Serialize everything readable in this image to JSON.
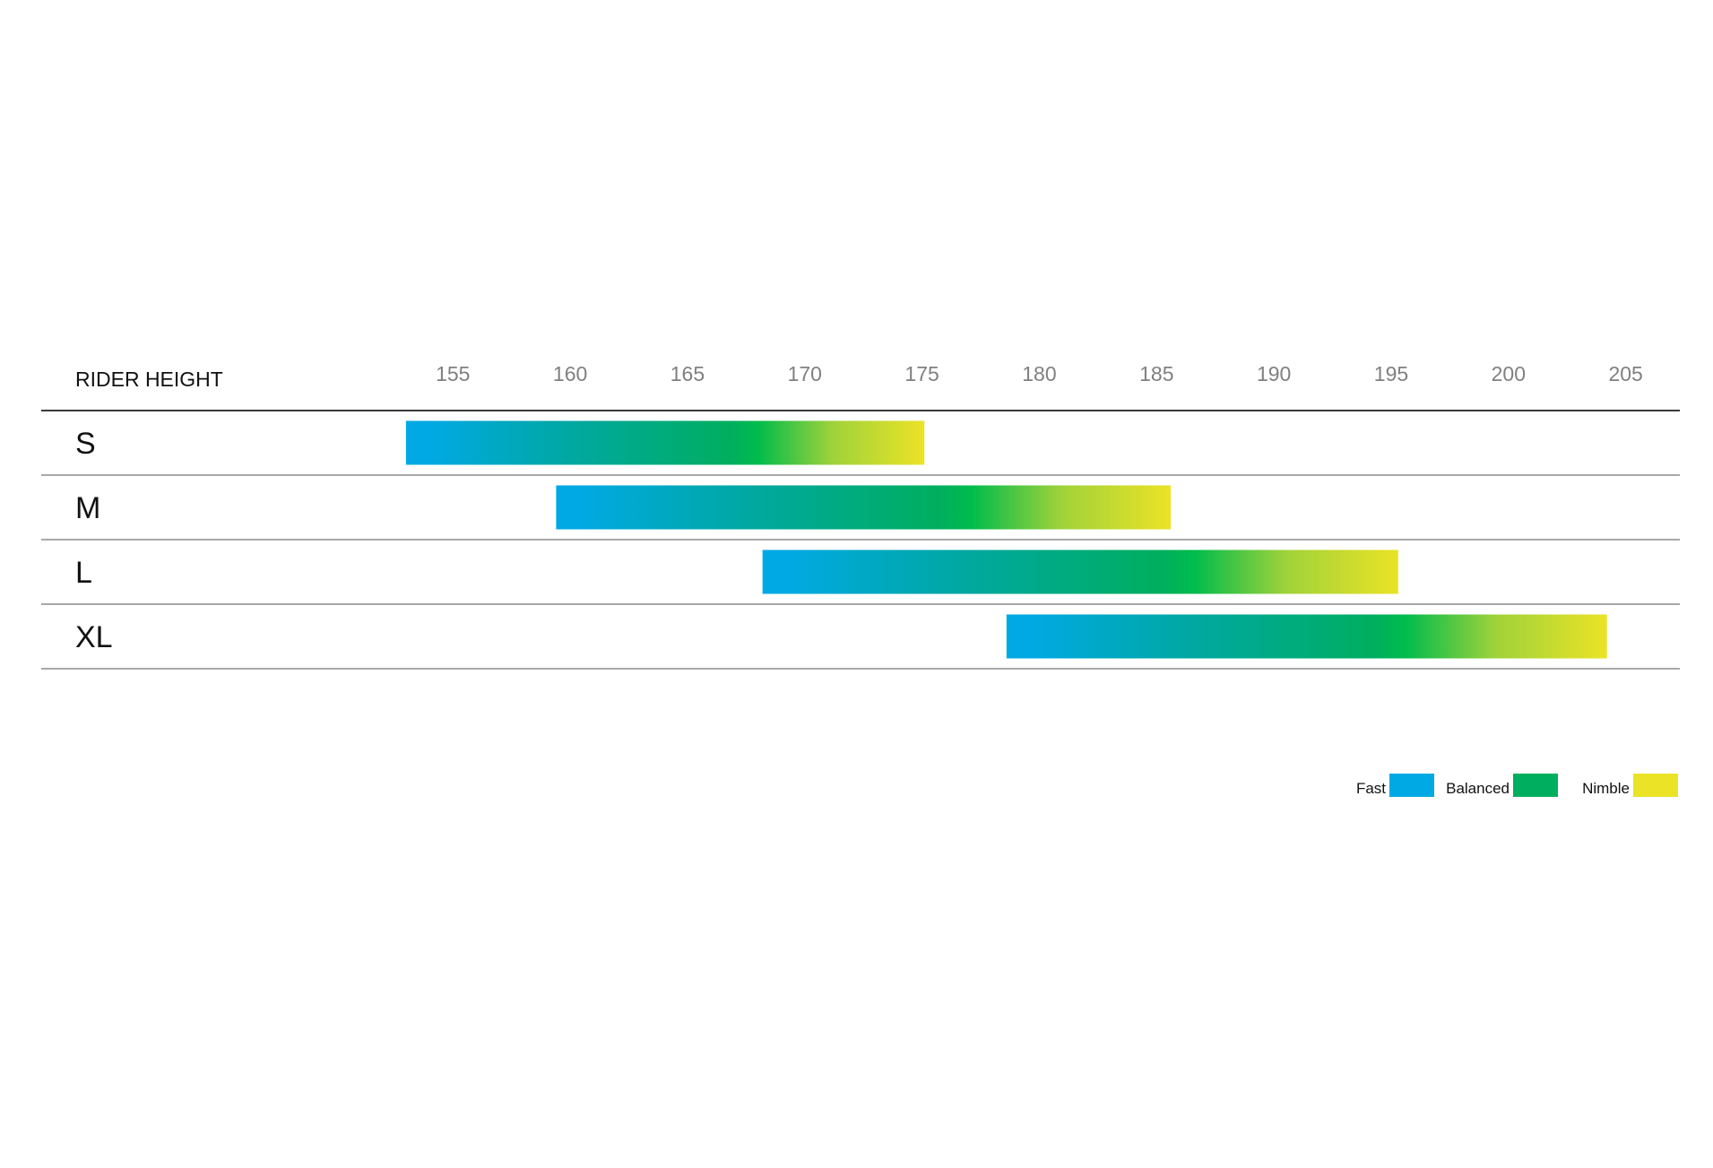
{
  "chart_data": {
    "type": "bar",
    "subtype": "floating-range-gradient",
    "ylabel": "RIDER HEIGHT",
    "x_ticks": [
      155,
      160,
      165,
      170,
      175,
      180,
      185,
      190,
      195,
      200,
      205
    ],
    "xlim": [
      152.85,
      207.0
    ],
    "categories": [
      "S",
      "M",
      "L",
      "XL"
    ],
    "ranges": [
      {
        "size": "S",
        "min": 153.0,
        "max": 175.1,
        "fast_end": 153.9,
        "balanced_end": 168.0
      },
      {
        "size": "M",
        "min": 159.4,
        "max": 185.6,
        "fast_end": 160.3,
        "balanced_end": 177.1
      },
      {
        "size": "L",
        "min": 168.2,
        "max": 195.3,
        "fast_end": 169.1,
        "balanced_end": 186.6
      },
      {
        "size": "XL",
        "min": 178.6,
        "max": 204.2,
        "fast_end": 179.5,
        "balanced_end": 195.6
      }
    ],
    "legend": {
      "position": "bottom-right",
      "items": [
        {
          "label": "Fast",
          "color": "#00a9e4"
        },
        {
          "label": "Balanced",
          "color": "#00ae5f"
        },
        {
          "label": "Nimble",
          "color": "#ebe326"
        }
      ]
    },
    "colors": {
      "fast": "#00a9e4",
      "mid": "#00a8a0",
      "balanced": "#00ae5f",
      "balanced_bright": "#00bc4c",
      "lime": "#a0d23a",
      "nimble": "#ebe326",
      "axis_text": "#808080",
      "label_text": "#111111",
      "row_line": "#8c8c8c",
      "header_line": "#3a3a3a"
    },
    "grid": false
  }
}
